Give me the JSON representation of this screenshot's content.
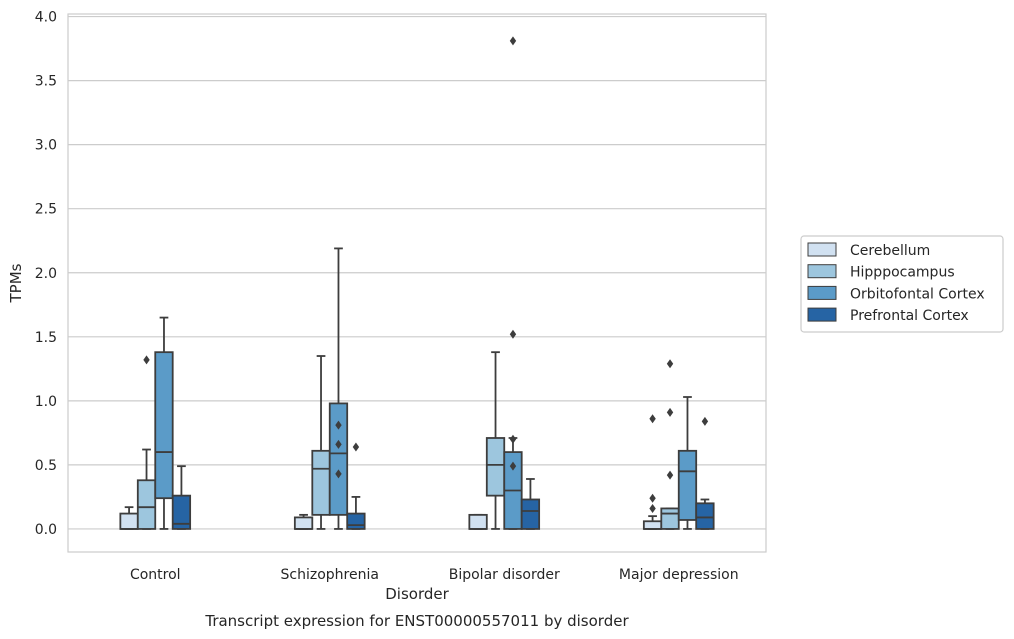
{
  "chart_data": {
    "type": "box",
    "caption": "Transcript expression for ENST00000557011 by disorder",
    "xlabel": "Disorder",
    "ylabel": "TPMs",
    "ylim": [
      -0.18,
      4.02
    ],
    "yticks": [
      "0.0",
      "0.5",
      "1.0",
      "1.5",
      "2.0",
      "2.5",
      "3.0",
      "3.5",
      "4.0"
    ],
    "grid": true,
    "legend_position": "right",
    "categories": [
      "Control",
      "Schizophrenia",
      "Bipolar disorder",
      "Major depression"
    ],
    "series": [
      {
        "name": "Cerebellum",
        "color": "#d1e1f1",
        "boxes": [
          {
            "whisker_low": 0.0,
            "q1": 0.0,
            "median": 0.0,
            "q3": 0.12,
            "whisker_high": 0.17,
            "outliers": []
          },
          {
            "whisker_low": 0.0,
            "q1": 0.0,
            "median": 0.0,
            "q3": 0.09,
            "whisker_high": 0.11,
            "outliers": []
          },
          {
            "whisker_low": 0.0,
            "q1": 0.0,
            "median": 0.0,
            "q3": 0.11,
            "whisker_high": 0.11,
            "outliers": []
          },
          {
            "whisker_low": 0.0,
            "q1": 0.0,
            "median": 0.0,
            "q3": 0.06,
            "whisker_high": 0.1,
            "outliers": [
              0.16,
              0.24,
              0.86
            ]
          }
        ]
      },
      {
        "name": "Hipppocampus",
        "color": "#9dc6de",
        "boxes": [
          {
            "whisker_low": 0.0,
            "q1": 0.0,
            "median": 0.17,
            "q3": 0.38,
            "whisker_high": 0.62,
            "outliers": [
              1.32
            ]
          },
          {
            "whisker_low": 0.0,
            "q1": 0.11,
            "median": 0.47,
            "q3": 0.61,
            "whisker_high": 1.35,
            "outliers": []
          },
          {
            "whisker_low": 0.0,
            "q1": 0.26,
            "median": 0.5,
            "q3": 0.71,
            "whisker_high": 1.38,
            "outliers": []
          },
          {
            "whisker_low": 0.0,
            "q1": 0.0,
            "median": 0.12,
            "q3": 0.16,
            "whisker_high": 0.16,
            "outliers": [
              0.42,
              0.91,
              1.29
            ]
          }
        ]
      },
      {
        "name": "Orbitofontal Cortex",
        "color": "#5b9bc8",
        "boxes": [
          {
            "whisker_low": 0.0,
            "q1": 0.24,
            "median": 0.6,
            "q3": 1.38,
            "whisker_high": 1.65,
            "outliers": []
          },
          {
            "whisker_low": 0.0,
            "q1": 0.11,
            "median": 0.59,
            "q3": 0.98,
            "whisker_high": 2.19,
            "outliers": [
              0.43,
              0.66,
              0.81
            ]
          },
          {
            "whisker_low": 0.0,
            "q1": 0.0,
            "median": 0.3,
            "q3": 0.6,
            "whisker_high": 0.71,
            "outliers": [
              0.49,
              0.7,
              1.52,
              3.81
            ]
          },
          {
            "whisker_low": 0.0,
            "q1": 0.07,
            "median": 0.45,
            "q3": 0.61,
            "whisker_high": 1.03,
            "outliers": []
          }
        ]
      },
      {
        "name": "Prefrontal Cortex",
        "color": "#2664a4",
        "boxes": [
          {
            "whisker_low": 0.0,
            "q1": 0.0,
            "median": 0.04,
            "q3": 0.26,
            "whisker_high": 0.49,
            "outliers": []
          },
          {
            "whisker_low": 0.0,
            "q1": 0.0,
            "median": 0.03,
            "q3": 0.12,
            "whisker_high": 0.25,
            "outliers": [
              0.64
            ]
          },
          {
            "whisker_low": 0.0,
            "q1": 0.0,
            "median": 0.14,
            "q3": 0.23,
            "whisker_high": 0.39,
            "outliers": []
          },
          {
            "whisker_low": 0.0,
            "q1": 0.0,
            "median": 0.09,
            "q3": 0.2,
            "whisker_high": 0.23,
            "outliers": [
              0.84
            ]
          }
        ]
      }
    ]
  }
}
